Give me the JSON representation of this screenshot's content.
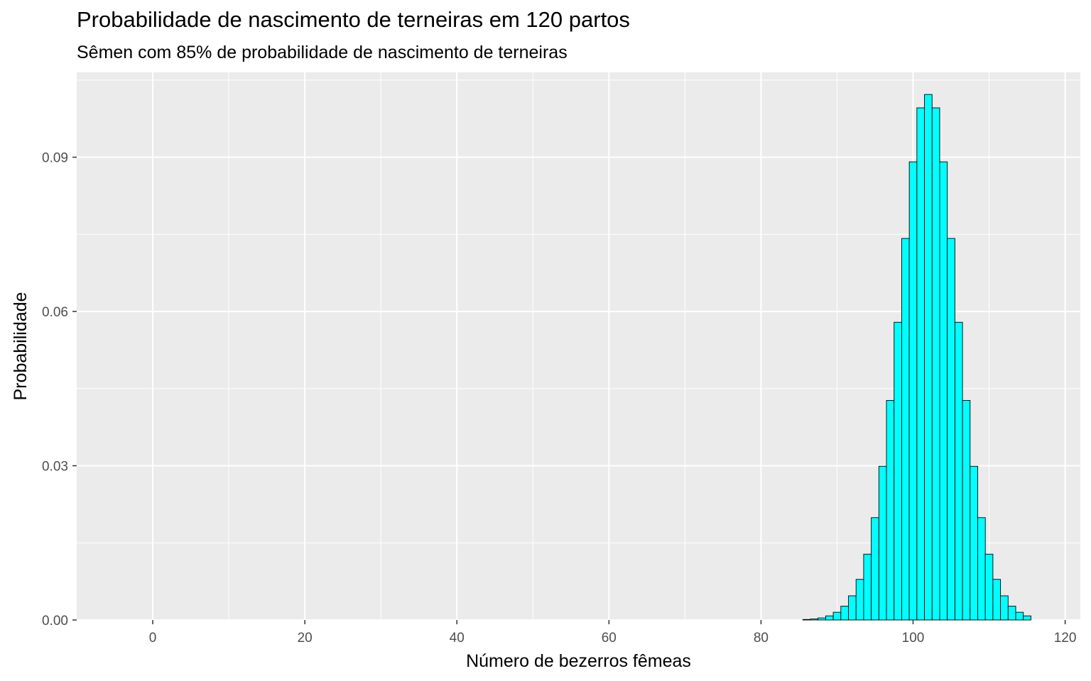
{
  "chart_data": {
    "type": "bar",
    "title": "Probabilidade de nascimento de terneiras em 120 partos",
    "subtitle": "Sêmen com 85% de probabilidade de nascimento de terneiras",
    "xlabel": "Número de bezerros fêmeas",
    "ylabel": "Probabilidade",
    "xlim": [
      -10,
      122
    ],
    "ylim": [
      0,
      0.1065
    ],
    "x_ticks": [
      0,
      20,
      40,
      60,
      80,
      100,
      120
    ],
    "x_tick_labels": [
      "0",
      "20",
      "40",
      "60",
      "80",
      "100",
      "120"
    ],
    "y_ticks": [
      0,
      0.03,
      0.06,
      0.09
    ],
    "y_tick_labels": [
      "0.00",
      "0.03",
      "0.06",
      "0.09"
    ],
    "grid": true,
    "bar_fill": "#00FFFF",
    "bar_outline": "#000000",
    "panel_background": "#EBEBEB",
    "grid_color": "#FFFFFF",
    "x": [
      86,
      87,
      88,
      89,
      90,
      91,
      92,
      93,
      94,
      95,
      96,
      97,
      98,
      99,
      100,
      101,
      102,
      103,
      104,
      105,
      106,
      107,
      108,
      109,
      110,
      111,
      112,
      113,
      114,
      115
    ],
    "values": [
      0.0001,
      0.0002,
      0.0004,
      0.0008,
      0.0015,
      0.0027,
      0.0047,
      0.0079,
      0.0128,
      0.0199,
      0.0299,
      0.0427,
      0.0579,
      0.0742,
      0.0891,
      0.0996,
      0.1022,
      0.0996,
      0.0891,
      0.0742,
      0.0579,
      0.0427,
      0.0299,
      0.0199,
      0.0128,
      0.0079,
      0.0047,
      0.0027,
      0.0015,
      0.0008
    ]
  }
}
